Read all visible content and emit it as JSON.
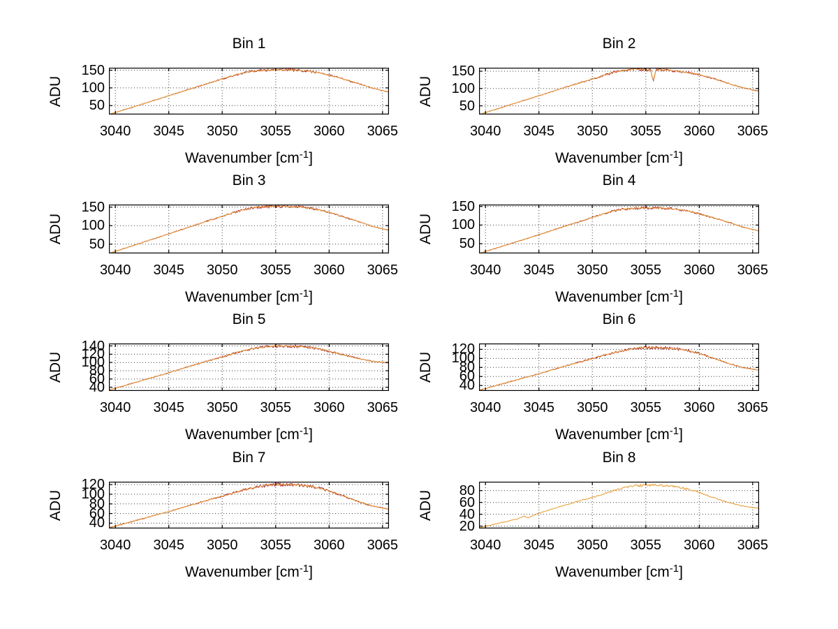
{
  "figure": {
    "background": "#ffffff",
    "axis_color": "#000000",
    "grid_color": "#3c3c3c",
    "line_color": "#e8a13b",
    "overplot_color_1": "#a2142f",
    "overplot_color_2": "#7e2f8e"
  },
  "axes": {
    "ylabel": "ADU",
    "xlabel_pre": "Wavenumber [cm",
    "xlabel_sup": "-1",
    "xlabel_post": "]",
    "xlim": [
      3039.4,
      3065.6
    ],
    "xticks": [
      3040,
      3045,
      3050,
      3055,
      3060,
      3065
    ],
    "xtick_labels": [
      "3040",
      "3045",
      "3050",
      "3055",
      "3060",
      "3065"
    ],
    "grid": "dotted"
  },
  "chart_data": [
    {
      "type": "line",
      "title": "Bin 1",
      "xlabel": "Wavenumber [cm^-1]",
      "ylabel": "ADU",
      "xlim": [
        3039.4,
        3065.6
      ],
      "ylim": [
        25,
        157
      ],
      "xticks": [
        3040,
        3045,
        3050,
        3055,
        3060,
        3065
      ],
      "yticks": [
        50,
        100,
        150
      ],
      "ytick_labels": [
        "50",
        "100",
        "150"
      ],
      "x": [
        3039.4,
        3041,
        3043,
        3045,
        3047,
        3049,
        3050.5,
        3052,
        3053,
        3054,
        3055,
        3056,
        3057,
        3058,
        3059,
        3060,
        3061,
        3062,
        3063,
        3064,
        3065.6
      ],
      "y": [
        25,
        40,
        59,
        78,
        97,
        116,
        130,
        143,
        148,
        150,
        151,
        151,
        150,
        148,
        143,
        136,
        128,
        119,
        110,
        100,
        88
      ],
      "has_overplot": true,
      "seed": 11
    },
    {
      "type": "line",
      "title": "Bin 2",
      "xlabel": "Wavenumber [cm^-1]",
      "ylabel": "ADU",
      "xlim": [
        3039.4,
        3065.6
      ],
      "ylim": [
        25,
        160
      ],
      "xticks": [
        3040,
        3045,
        3050,
        3055,
        3060,
        3065
      ],
      "yticks": [
        50,
        100,
        150
      ],
      "ytick_labels": [
        "50",
        "100",
        "150"
      ],
      "x": [
        3039.4,
        3041,
        3043,
        3045,
        3047,
        3049,
        3050.5,
        3052,
        3053,
        3054,
        3055,
        3056,
        3057,
        3058,
        3059,
        3060,
        3061,
        3062,
        3063,
        3064,
        3065.6
      ],
      "y": [
        25,
        40,
        60,
        79,
        99,
        118,
        132,
        147,
        152,
        156,
        154,
        155,
        153,
        150,
        146,
        140,
        132,
        122,
        112,
        103,
        92
      ],
      "spike": {
        "x": 3055.7,
        "depth": 33,
        "width": 0.25
      },
      "has_overplot": true,
      "seed": 29
    },
    {
      "type": "line",
      "title": "Bin 3",
      "xlabel": "Wavenumber [cm^-1]",
      "ylabel": "ADU",
      "xlim": [
        3039.4,
        3065.6
      ],
      "ylim": [
        25,
        157
      ],
      "xticks": [
        3040,
        3045,
        3050,
        3055,
        3060,
        3065
      ],
      "yticks": [
        50,
        100,
        150
      ],
      "ytick_labels": [
        "50",
        "100",
        "150"
      ],
      "x": [
        3039.4,
        3041,
        3043,
        3045,
        3047,
        3049,
        3050.5,
        3052,
        3053,
        3054,
        3055,
        3056,
        3057,
        3058,
        3059,
        3060,
        3061,
        3062,
        3063,
        3064,
        3065.6
      ],
      "y": [
        25,
        40,
        59,
        78,
        97,
        116,
        130,
        143,
        149,
        151,
        152,
        152,
        151,
        148,
        143,
        136,
        127,
        118,
        109,
        99,
        87
      ],
      "has_overplot": true,
      "seed": 47
    },
    {
      "type": "line",
      "title": "Bin 4",
      "xlabel": "Wavenumber [cm^-1]",
      "ylabel": "ADU",
      "xlim": [
        3039.4,
        3065.6
      ],
      "ylim": [
        24,
        155
      ],
      "xticks": [
        3040,
        3045,
        3050,
        3055,
        3060,
        3065
      ],
      "yticks": [
        50,
        100,
        150
      ],
      "ytick_labels": [
        "50",
        "100",
        "150"
      ],
      "x": [
        3039.4,
        3041,
        3043,
        3045,
        3047,
        3049,
        3050.5,
        3052,
        3053,
        3054,
        3055,
        3056,
        3057,
        3058,
        3059,
        3060,
        3061,
        3062,
        3063,
        3064,
        3065.6
      ],
      "y": [
        24,
        38,
        56,
        74,
        93,
        111,
        125,
        138,
        143,
        145,
        146,
        146,
        145,
        142,
        137,
        130,
        122,
        114,
        105,
        95,
        84
      ],
      "has_overplot": true,
      "seed": 61
    },
    {
      "type": "line",
      "title": "Bin 5",
      "xlabel": "Wavenumber [cm^-1]",
      "ylabel": "ADU",
      "xlim": [
        3039.4,
        3065.6
      ],
      "ylim": [
        31,
        146
      ],
      "xticks": [
        3040,
        3045,
        3050,
        3055,
        3060,
        3065
      ],
      "yticks": [
        40,
        60,
        80,
        100,
        120,
        140
      ],
      "ytick_labels": [
        "40",
        "60",
        "80",
        "100",
        "120",
        "140"
      ],
      "x": [
        3039.4,
        3041,
        3043,
        3045,
        3047,
        3049,
        3050.5,
        3052,
        3053,
        3054,
        3055,
        3056,
        3057,
        3058,
        3059,
        3060,
        3061,
        3062,
        3063,
        3064,
        3065.6
      ],
      "y": [
        33,
        45,
        60,
        75,
        91,
        106,
        117,
        129,
        134,
        138,
        140,
        140,
        139,
        137,
        133,
        127,
        121,
        114,
        108,
        103,
        99
      ],
      "has_overplot": true,
      "seed": 83
    },
    {
      "type": "line",
      "title": "Bin 6",
      "xlabel": "Wavenumber [cm^-1]",
      "ylabel": "ADU",
      "xlim": [
        3039.4,
        3065.6
      ],
      "ylim": [
        28,
        133
      ],
      "xticks": [
        3040,
        3045,
        3050,
        3055,
        3060,
        3065
      ],
      "yticks": [
        40,
        60,
        80,
        100,
        120
      ],
      "ytick_labels": [
        "40",
        "60",
        "80",
        "100",
        "120"
      ],
      "x": [
        3039.4,
        3041,
        3043,
        3045,
        3047,
        3049,
        3050.5,
        3052,
        3053,
        3054,
        3055,
        3056,
        3057,
        3058,
        3059,
        3060,
        3061,
        3062,
        3063,
        3064,
        3065.6
      ],
      "y": [
        29,
        40,
        53,
        66,
        80,
        93,
        103,
        113,
        118,
        122,
        124,
        124,
        123,
        121,
        117,
        111,
        103,
        95,
        87,
        80,
        74
      ],
      "has_overplot": true,
      "seed": 101
    },
    {
      "type": "line",
      "title": "Bin 7",
      "xlabel": "Wavenumber [cm^-1]",
      "ylabel": "ADU",
      "xlim": [
        3039.4,
        3065.6
      ],
      "ylim": [
        29,
        126
      ],
      "xticks": [
        3040,
        3045,
        3050,
        3055,
        3060,
        3065
      ],
      "yticks": [
        40,
        60,
        80,
        100,
        120
      ],
      "ytick_labels": [
        "40",
        "60",
        "80",
        "100",
        "120"
      ],
      "x": [
        3039.4,
        3041,
        3043,
        3045,
        3047,
        3049,
        3050.5,
        3052,
        3053,
        3054,
        3055,
        3056,
        3057,
        3058,
        3059,
        3060,
        3061,
        3062,
        3063,
        3064,
        3065.6
      ],
      "y": [
        30,
        40,
        52,
        64,
        77,
        90,
        99,
        109,
        114,
        118,
        120,
        120,
        119,
        117,
        113,
        107,
        99,
        91,
        83,
        76,
        69
      ],
      "has_overplot": true,
      "seed": 131
    },
    {
      "type": "line",
      "title": "Bin 8",
      "xlabel": "Wavenumber [cm^-1]",
      "ylabel": "ADU",
      "xlim": [
        3039.4,
        3065.6
      ],
      "ylim": [
        16,
        95
      ],
      "xticks": [
        3040,
        3045,
        3050,
        3055,
        3060,
        3065
      ],
      "yticks": [
        20,
        40,
        60,
        80
      ],
      "ytick_labels": [
        "20",
        "40",
        "60",
        "80"
      ],
      "x": [
        3039.4,
        3041,
        3043,
        3043.6,
        3044,
        3045,
        3047,
        3049,
        3050.5,
        3052,
        3053,
        3054,
        3055,
        3056,
        3057,
        3058,
        3059,
        3060,
        3061,
        3062,
        3063,
        3064,
        3065.6
      ],
      "y": [
        17,
        24,
        32,
        37,
        34,
        42,
        53,
        64,
        71,
        80,
        85,
        88,
        89,
        89,
        88,
        86,
        82,
        77,
        70,
        64,
        59,
        54,
        50
      ],
      "has_overplot": false,
      "seed": 151
    }
  ]
}
